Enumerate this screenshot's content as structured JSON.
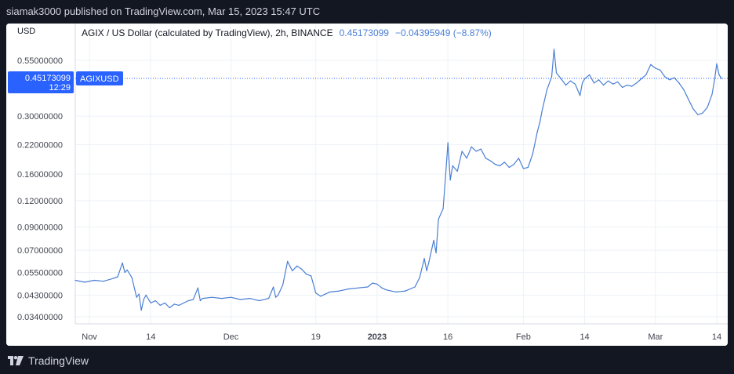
{
  "header": {
    "publish_text": "siamak3000 published on TradingView.com, Mar 15, 2023 15:47 UTC"
  },
  "footer": {
    "brand": "TradingView",
    "logo_icon": "tradingview-logo-icon"
  },
  "colors": {
    "line": "#4a7fd4",
    "accent": "#2962ff",
    "grid": "#eef1f6",
    "text": "#131722",
    "axis_text": "#434651",
    "bg_dark": "#131722"
  },
  "chart_data": {
    "type": "line",
    "title": "AGIX / US Dollar (calculated by TradingView), 2h, BINANCE",
    "price_text": "0.45173099",
    "change_text": "−0.04395949 (−8.87%)",
    "currency": "USD",
    "symbol_label": "AGIXUSD",
    "last_price_label": "0.45173099",
    "countdown_label": "12:29",
    "y_scale": "log",
    "ylim": [
      0.0315,
      0.82
    ],
    "y_ticks": [
      {
        "value": 0.55,
        "label": "0.55000000"
      },
      {
        "value": 0.3,
        "label": "0.30000000"
      },
      {
        "value": 0.22,
        "label": "0.22000000"
      },
      {
        "value": 0.16,
        "label": "0.16000000"
      },
      {
        "value": 0.12,
        "label": "0.12000000"
      },
      {
        "value": 0.09,
        "label": "0.09000000"
      },
      {
        "value": 0.07,
        "label": "0.07000000"
      },
      {
        "value": 0.055,
        "label": "0.05500000"
      },
      {
        "value": 0.043,
        "label": "0.04300000"
      },
      {
        "value": 0.034,
        "label": "0.03400000"
      }
    ],
    "x_ticks": [
      {
        "date": "2022-11-01",
        "label": "Nov",
        "bold": false
      },
      {
        "date": "2022-11-14",
        "label": "14",
        "bold": false
      },
      {
        "date": "2022-12-01",
        "label": "Dec",
        "bold": false
      },
      {
        "date": "2022-12-19",
        "label": "19",
        "bold": false
      },
      {
        "date": "2023-01-01",
        "label": "2023",
        "bold": true
      },
      {
        "date": "2023-01-16",
        "label": "16",
        "bold": false
      },
      {
        "date": "2023-02-01",
        "label": "Feb",
        "bold": false
      },
      {
        "date": "2023-02-14",
        "label": "14",
        "bold": false
      },
      {
        "date": "2023-03-01",
        "label": "Mar",
        "bold": false
      },
      {
        "date": "2023-03-14",
        "label": "14",
        "bold": false
      }
    ],
    "xlim": [
      "2022-10-29",
      "2023-03-15"
    ],
    "grid": true,
    "series": [
      {
        "points": [
          [
            "2022-10-29",
            0.0505
          ],
          [
            "2022-10-31",
            0.0495
          ],
          [
            "2022-11-02",
            0.0505
          ],
          [
            "2022-11-04",
            0.05
          ],
          [
            "2022-11-06",
            0.0515
          ],
          [
            "2022-11-07",
            0.0525
          ],
          [
            "2022-11-08",
            0.061
          ],
          [
            "2022-11-08T12",
            0.055
          ],
          [
            "2022-11-09",
            0.0565
          ],
          [
            "2022-11-10",
            0.052
          ],
          [
            "2022-11-11",
            0.042
          ],
          [
            "2022-11-11T12",
            0.0435
          ],
          [
            "2022-11-12",
            0.0365
          ],
          [
            "2022-11-12T12",
            0.041
          ],
          [
            "2022-11-13",
            0.043
          ],
          [
            "2022-11-14",
            0.0395
          ],
          [
            "2022-11-15",
            0.0405
          ],
          [
            "2022-11-16",
            0.0385
          ],
          [
            "2022-11-17",
            0.0395
          ],
          [
            "2022-11-18",
            0.0375
          ],
          [
            "2022-11-19",
            0.039
          ],
          [
            "2022-11-20",
            0.0385
          ],
          [
            "2022-11-21",
            0.0395
          ],
          [
            "2022-11-22",
            0.0405
          ],
          [
            "2022-11-23",
            0.041
          ],
          [
            "2022-11-24",
            0.0465
          ],
          [
            "2022-11-24T12",
            0.0405
          ],
          [
            "2022-11-25",
            0.0415
          ],
          [
            "2022-11-27",
            0.042
          ],
          [
            "2022-11-29",
            0.0415
          ],
          [
            "2022-12-01",
            0.042
          ],
          [
            "2022-12-03",
            0.041
          ],
          [
            "2022-12-05",
            0.0415
          ],
          [
            "2022-12-07",
            0.0405
          ],
          [
            "2022-12-09",
            0.0415
          ],
          [
            "2022-12-10",
            0.047
          ],
          [
            "2022-12-10T12",
            0.042
          ],
          [
            "2022-12-11",
            0.043
          ],
          [
            "2022-12-12",
            0.048
          ],
          [
            "2022-12-13",
            0.062
          ],
          [
            "2022-12-14",
            0.056
          ],
          [
            "2022-12-15",
            0.059
          ],
          [
            "2022-12-16",
            0.057
          ],
          [
            "2022-12-17",
            0.054
          ],
          [
            "2022-12-18",
            0.053
          ],
          [
            "2022-12-19",
            0.044
          ],
          [
            "2022-12-20",
            0.0425
          ],
          [
            "2022-12-21",
            0.0435
          ],
          [
            "2022-12-22",
            0.0445
          ],
          [
            "2022-12-24",
            0.045
          ],
          [
            "2022-12-26",
            0.046
          ],
          [
            "2022-12-28",
            0.0465
          ],
          [
            "2022-12-30",
            0.047
          ],
          [
            "2022-12-31",
            0.049
          ],
          [
            "2023-01-01",
            0.0485
          ],
          [
            "2023-01-02",
            0.0465
          ],
          [
            "2023-01-03",
            0.0455
          ],
          [
            "2023-01-05",
            0.0445
          ],
          [
            "2023-01-07",
            0.045
          ],
          [
            "2023-01-09",
            0.047
          ],
          [
            "2023-01-10",
            0.052
          ],
          [
            "2023-01-11",
            0.064
          ],
          [
            "2023-01-11T12",
            0.056
          ],
          [
            "2023-01-12",
            0.062
          ],
          [
            "2023-01-13",
            0.078
          ],
          [
            "2023-01-13T12",
            0.068
          ],
          [
            "2023-01-14",
            0.098
          ],
          [
            "2023-01-15",
            0.11
          ],
          [
            "2023-01-15T12",
            0.155
          ],
          [
            "2023-01-16",
            0.225
          ],
          [
            "2023-01-16T12",
            0.15
          ],
          [
            "2023-01-17",
            0.175
          ],
          [
            "2023-01-18",
            0.165
          ],
          [
            "2023-01-19",
            0.205
          ],
          [
            "2023-01-20",
            0.19
          ],
          [
            "2023-01-21",
            0.215
          ],
          [
            "2023-01-22",
            0.205
          ],
          [
            "2023-01-23",
            0.21
          ],
          [
            "2023-01-24",
            0.19
          ],
          [
            "2023-01-25",
            0.185
          ],
          [
            "2023-01-26",
            0.178
          ],
          [
            "2023-01-27",
            0.175
          ],
          [
            "2023-01-28",
            0.182
          ],
          [
            "2023-01-29",
            0.172
          ],
          [
            "2023-01-30",
            0.178
          ],
          [
            "2023-01-31",
            0.19
          ],
          [
            "2023-02-01",
            0.17
          ],
          [
            "2023-02-02",
            0.172
          ],
          [
            "2023-02-03",
            0.2
          ],
          [
            "2023-02-04",
            0.255
          ],
          [
            "2023-02-04T12",
            0.28
          ],
          [
            "2023-02-05",
            0.32
          ],
          [
            "2023-02-06",
            0.4
          ],
          [
            "2023-02-07",
            0.46
          ],
          [
            "2023-02-07T12",
            0.62
          ],
          [
            "2023-02-08",
            0.48
          ],
          [
            "2023-02-09",
            0.45
          ],
          [
            "2023-02-10",
            0.42
          ],
          [
            "2023-02-11",
            0.44
          ],
          [
            "2023-02-12",
            0.425
          ],
          [
            "2023-02-13",
            0.375
          ],
          [
            "2023-02-13T12",
            0.43
          ],
          [
            "2023-02-14",
            0.45
          ],
          [
            "2023-02-15",
            0.47
          ],
          [
            "2023-02-16",
            0.43
          ],
          [
            "2023-02-17",
            0.445
          ],
          [
            "2023-02-18",
            0.42
          ],
          [
            "2023-02-19",
            0.44
          ],
          [
            "2023-02-20",
            0.425
          ],
          [
            "2023-02-21",
            0.435
          ],
          [
            "2023-02-22",
            0.41
          ],
          [
            "2023-02-23",
            0.42
          ],
          [
            "2023-02-24",
            0.415
          ],
          [
            "2023-02-25",
            0.43
          ],
          [
            "2023-02-26",
            0.45
          ],
          [
            "2023-02-27",
            0.47
          ],
          [
            "2023-02-28",
            0.525
          ],
          [
            "2023-03-01",
            0.505
          ],
          [
            "2023-03-02",
            0.495
          ],
          [
            "2023-03-03",
            0.46
          ],
          [
            "2023-03-04",
            0.445
          ],
          [
            "2023-03-05",
            0.455
          ],
          [
            "2023-03-06",
            0.43
          ],
          [
            "2023-03-07",
            0.4
          ],
          [
            "2023-03-08",
            0.36
          ],
          [
            "2023-03-09",
            0.325
          ],
          [
            "2023-03-10",
            0.305
          ],
          [
            "2023-03-11",
            0.31
          ],
          [
            "2023-03-12",
            0.33
          ],
          [
            "2023-03-13",
            0.38
          ],
          [
            "2023-03-13T12",
            0.44
          ],
          [
            "2023-03-14",
            0.53
          ],
          [
            "2023-03-14T12",
            0.47
          ],
          [
            "2023-03-15",
            0.452
          ]
        ]
      }
    ]
  }
}
